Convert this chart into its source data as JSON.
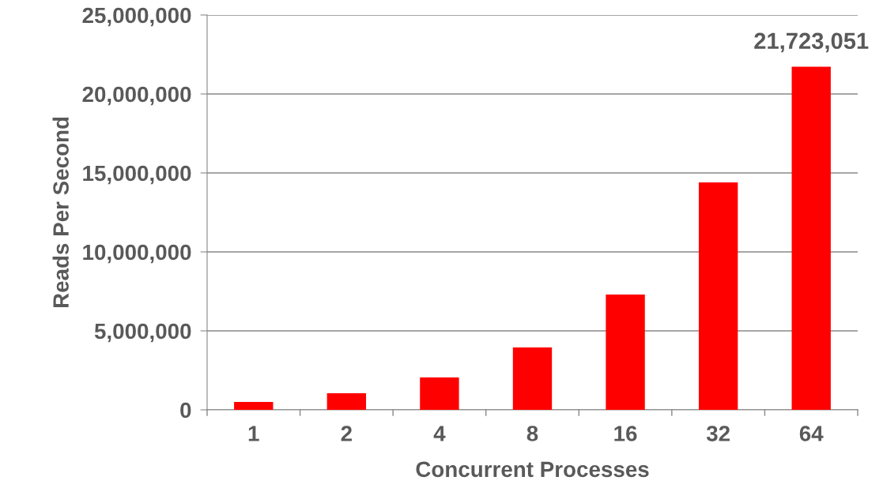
{
  "chart_data": {
    "type": "bar",
    "xlabel": "Concurrent Processes",
    "ylabel": "Reads Per Second",
    "categories": [
      "1",
      "2",
      "4",
      "8",
      "16",
      "32",
      "64"
    ],
    "values": [
      500000,
      1050000,
      2050000,
      3950000,
      7300000,
      14400000,
      21723051
    ],
    "value_labels": [
      null,
      null,
      null,
      null,
      null,
      null,
      "21,723,051"
    ],
    "color": "#ff0000",
    "ylim": [
      0,
      25000000
    ],
    "yticks": [
      {
        "value": 0,
        "label": "0"
      },
      {
        "value": 5000000,
        "label": "5,000,000"
      },
      {
        "value": 10000000,
        "label": "10,000,000"
      },
      {
        "value": 15000000,
        "label": "15,000,000"
      },
      {
        "value": 20000000,
        "label": "20,000,000"
      },
      {
        "value": 25000000,
        "label": "25,000,000"
      }
    ],
    "grid": "y",
    "legend": false
  }
}
